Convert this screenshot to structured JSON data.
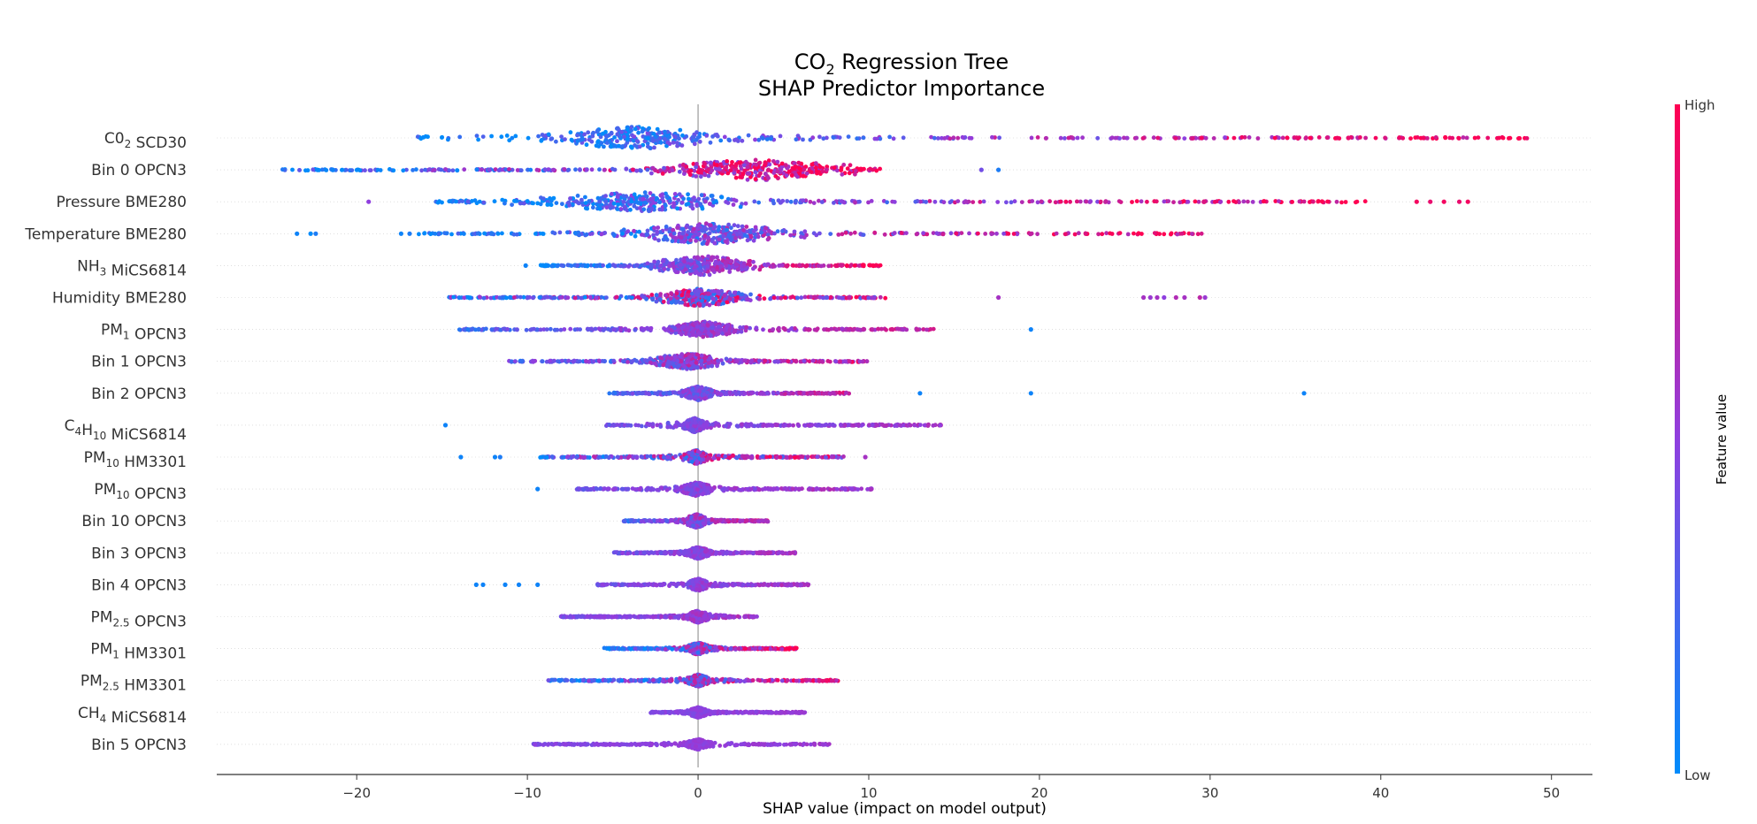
{
  "chart_data": {
    "type": "scatter",
    "subtype": "shap-beeswarm",
    "title": {
      "line1_main": "CO",
      "line1_sub": "2",
      "line1_rest": " Regression Tree",
      "line2": "SHAP Predictor Importance"
    },
    "xlabel": "SHAP value (impact on model output)",
    "xlim": [
      -28.2,
      52.4
    ],
    "xticks": [
      -20,
      -10,
      0,
      10,
      20,
      30,
      40,
      50
    ],
    "grid": false,
    "colorbar": {
      "label": "Feature value",
      "high_label": "High",
      "low_label": "Low",
      "low_color": "#008bfb",
      "mid_color": "#8f3fdf",
      "high_color": "#ff0052"
    },
    "axis_color": "#333333",
    "zero_line_color": "#999999",
    "features": [
      {
        "main": "C0",
        "sub": "2",
        "rest": " SCD30",
        "min": -16.7,
        "max": 48.7,
        "peak": -3.6,
        "spread": 2.2,
        "width": 13,
        "color_trend": 1,
        "color_noise": 0.25,
        "outliers": [
          [
            29.5,
            0.95
          ],
          [
            42.5,
            0.95
          ],
          [
            38.1,
            0.9
          ]
        ]
      },
      {
        "main": "Bin 0 OPCN3",
        "sub": "",
        "rest": "",
        "min": -24.5,
        "max": 10.8,
        "peak": 3.5,
        "spread": 2.5,
        "width": 12,
        "color_trend": 1,
        "color_noise": 0.35,
        "outliers": [
          [
            16.6,
            0.4
          ],
          [
            17.6,
            0.1
          ],
          [
            -22.3,
            0.0
          ],
          [
            -21.4,
            0.05
          ]
        ]
      },
      {
        "main": "Pressure BME280",
        "sub": "",
        "rest": "",
        "min": -15.4,
        "max": 39.2,
        "peak": -3.2,
        "spread": 3.0,
        "width": 11,
        "color_trend": 1,
        "color_noise": 0.3,
        "outliers": [
          [
            -19.3,
            0.5
          ],
          [
            42.1,
            0.95
          ],
          [
            42.9,
            0.9
          ],
          [
            43.7,
            0.95
          ],
          [
            44.6,
            0.9
          ],
          [
            45.1,
            0.95
          ]
        ]
      },
      {
        "main": "Temperature BME280",
        "sub": "",
        "rest": "",
        "min": -16.5,
        "max": 29.7,
        "peak": 0.6,
        "spread": 2.0,
        "width": 12,
        "color_trend": 0.9,
        "color_noise": 0.3,
        "outliers": [
          [
            -23.5,
            0.05
          ],
          [
            -22.7,
            0.0
          ],
          [
            -22.4,
            0.1
          ],
          [
            -17.4,
            0.05
          ],
          [
            -16.9,
            0.1
          ]
        ]
      },
      {
        "main": "NH",
        "sub": "3",
        "rest": " MiCS6814",
        "min": -9.4,
        "max": 10.7,
        "peak": 0.4,
        "spread": 1.4,
        "width": 11,
        "color_trend": 1,
        "color_noise": 0.2,
        "outliers": [
          [
            -10.1,
            0.05
          ]
        ]
      },
      {
        "main": "Humidity BME280",
        "sub": "",
        "rest": "",
        "min": -14.6,
        "max": 11.0,
        "peak": 0.1,
        "spread": 1.2,
        "width": 10,
        "color_trend": 0.5,
        "color_noise": 0.45,
        "outliers": [
          [
            17.6,
            0.6
          ],
          [
            26.1,
            0.6
          ],
          [
            26.5,
            0.55
          ],
          [
            26.9,
            0.6
          ],
          [
            27.3,
            0.5
          ],
          [
            28.0,
            0.65
          ],
          [
            28.5,
            0.6
          ],
          [
            29.4,
            0.7
          ],
          [
            29.7,
            0.55
          ]
        ]
      },
      {
        "main": "PM",
        "sub": "1",
        "rest": " OPCN3",
        "min": -14.0,
        "max": 13.8,
        "peak": 0.4,
        "spread": 0.9,
        "width": 9,
        "color_trend": 0.5,
        "color_noise": 0.15,
        "outliers": [
          [
            19.5,
            0.05
          ]
        ]
      },
      {
        "main": "Bin 1 OPCN3",
        "sub": "",
        "rest": "",
        "min": -11.3,
        "max": 9.9,
        "peak": -0.6,
        "spread": 1.0,
        "width": 9,
        "color_trend": 0.5,
        "color_noise": 0.25,
        "outliers": []
      },
      {
        "main": "Bin 2 OPCN3",
        "sub": "",
        "rest": "",
        "min": -5.2,
        "max": 9.0,
        "peak": 0.0,
        "spread": 0.4,
        "width": 8,
        "color_trend": 0.5,
        "color_noise": 0.15,
        "outliers": [
          [
            13.0,
            0.05
          ],
          [
            19.5,
            0.05
          ],
          [
            35.5,
            0.05
          ]
        ]
      },
      {
        "main": "C",
        "sub": "4",
        "rest": "H10 MiCS6814",
        "sub_b": "10",
        "rest_b": " MiCS6814",
        "sub_a": "4",
        "mid": "H",
        "min": -5.4,
        "max": 14.4,
        "peak": -0.2,
        "spread": 0.3,
        "width": 8,
        "color_trend": 0.2,
        "color_noise": 0.1,
        "outliers": [
          [
            -14.8,
            0.05
          ]
        ]
      },
      {
        "main": "PM",
        "sub": "10",
        "rest": " HM3301",
        "min": -9.3,
        "max": 8.6,
        "peak": -0.1,
        "spread": 0.3,
        "width": 8,
        "color_trend": 0.5,
        "color_noise": 0.4,
        "outliers": [
          [
            -13.9,
            0.05
          ],
          [
            -11.9,
            0.05
          ],
          [
            -11.6,
            0.1
          ],
          [
            9.8,
            0.6
          ]
        ]
      },
      {
        "main": "PM",
        "sub": "10",
        "rest": " OPCN3",
        "min": -7.1,
        "max": 10.3,
        "peak": -0.1,
        "spread": 0.4,
        "width": 8,
        "color_trend": 0.2,
        "color_noise": 0.1,
        "outliers": [
          [
            -9.4,
            0.05
          ]
        ]
      },
      {
        "main": "Bin 10 OPCN3",
        "sub": "",
        "rest": "",
        "min": -4.4,
        "max": 4.1,
        "peak": -0.1,
        "spread": 0.3,
        "width": 8,
        "color_trend": 0.5,
        "color_noise": 0.2,
        "outliers": []
      },
      {
        "main": "Bin 3 OPCN3",
        "sub": "",
        "rest": "",
        "min": -5.0,
        "max": 5.8,
        "peak": 0.0,
        "spread": 0.3,
        "width": 7,
        "color_trend": 0.2,
        "color_noise": 0.1,
        "outliers": []
      },
      {
        "main": "Bin 4 OPCN3",
        "sub": "",
        "rest": "",
        "min": -5.9,
        "max": 6.5,
        "peak": 0.0,
        "spread": 0.3,
        "width": 7,
        "color_trend": 0.2,
        "color_noise": 0.1,
        "outliers": [
          [
            -13.0,
            0.05
          ],
          [
            -12.6,
            0.05
          ],
          [
            -11.3,
            0.05
          ],
          [
            -10.5,
            0.05
          ],
          [
            -9.4,
            0.05
          ]
        ]
      },
      {
        "main": "PM",
        "sub": "2.5",
        "rest": " OPCN3",
        "min": -8.1,
        "max": 3.6,
        "peak": 0.0,
        "spread": 0.3,
        "width": 7,
        "color_trend": 0.2,
        "color_noise": 0.1,
        "outliers": []
      },
      {
        "main": "PM",
        "sub": "1",
        "rest": " HM3301",
        "min": -5.5,
        "max": 5.8,
        "peak": 0.0,
        "spread": 0.3,
        "width": 7,
        "color_trend": 0.9,
        "color_noise": 0.35,
        "outliers": []
      },
      {
        "main": "PM",
        "sub": "2.5",
        "rest": " HM3301",
        "min": -8.8,
        "max": 8.2,
        "peak": 0.0,
        "spread": 0.3,
        "width": 7,
        "color_trend": 0.8,
        "color_noise": 0.35,
        "outliers": []
      },
      {
        "main": "CH",
        "sub": "4",
        "rest": " MiCS6814",
        "min": -2.8,
        "max": 6.3,
        "peak": 0.0,
        "spread": 0.25,
        "width": 6,
        "color_trend": 0.1,
        "color_noise": 0.05,
        "outliers": []
      },
      {
        "main": "Bin 5 OPCN3",
        "sub": "",
        "rest": "",
        "min": -9.8,
        "max": 7.7,
        "peak": 0.0,
        "spread": 0.3,
        "width": 6,
        "color_trend": 0.1,
        "color_noise": 0.05,
        "outliers": []
      }
    ]
  }
}
